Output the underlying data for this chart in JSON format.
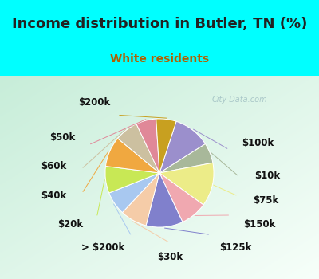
{
  "title": "Income distribution in Butler, TN (%)",
  "subtitle": "White residents",
  "bg_cyan": "#00ffff",
  "bg_chart_color": "#d8f0e8",
  "watermark": "City-Data.com",
  "labels": [
    "$100k",
    "$10k",
    "$75k",
    "$150k",
    "$125k",
    "$30k",
    "> $200k",
    "$20k",
    "$40k",
    "$60k",
    "$50k",
    "$200k"
  ],
  "sizes": [
    11,
    6,
    13,
    8,
    11,
    8,
    7,
    8,
    9,
    7,
    6,
    6
  ],
  "colors": [
    "#9b8fcc",
    "#a8b89a",
    "#ecec88",
    "#f0a8b0",
    "#8080cc",
    "#f5cca8",
    "#a8c8f0",
    "#c8e855",
    "#f0a840",
    "#ccc0a0",
    "#e08898",
    "#c8a020"
  ],
  "title_fontsize": 13,
  "subtitle_fontsize": 10,
  "label_fontsize": 8.5
}
